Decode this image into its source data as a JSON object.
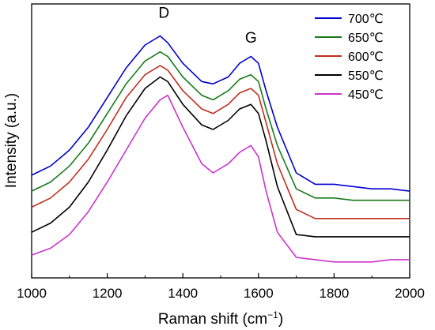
{
  "chart_data": {
    "type": "line",
    "title": "",
    "xlabel": "Raman shift (cm",
    "xlabel_sup": "−1",
    "xlabel_end": ")",
    "ylabel": "Intensity (a.u.)",
    "xlim": [
      1000,
      2000
    ],
    "ylim": [
      0,
      1.2
    ],
    "xticks": [
      1000,
      1200,
      1400,
      1600,
      1800,
      2000
    ],
    "xtick_labels": [
      "1000",
      "1200",
      "1400",
      "1600",
      "1800",
      "2000"
    ],
    "y_tick_labels_shown": false,
    "grid": false,
    "legend_position": "top-right",
    "annotations": [
      {
        "text": "D",
        "x": 1350,
        "y": 1.14
      },
      {
        "text": "G",
        "x": 1580,
        "y": 1.03
      }
    ],
    "x": [
      1000,
      1050,
      1100,
      1150,
      1200,
      1250,
      1300,
      1340,
      1360,
      1400,
      1450,
      1480,
      1520,
      1550,
      1580,
      1600,
      1620,
      1650,
      1700,
      1750,
      1800,
      1850,
      1900,
      1950,
      2000
    ],
    "series": [
      {
        "name": "700℃",
        "color": "#0000cc",
        "values": [
          0.45,
          0.49,
          0.56,
          0.66,
          0.79,
          0.92,
          1.02,
          1.06,
          1.03,
          0.94,
          0.86,
          0.85,
          0.88,
          0.94,
          0.97,
          0.94,
          0.82,
          0.66,
          0.46,
          0.41,
          0.41,
          0.4,
          0.39,
          0.39,
          0.38
        ]
      },
      {
        "name": "650℃",
        "color": "#1a7a1a",
        "values": [
          0.38,
          0.42,
          0.49,
          0.59,
          0.72,
          0.85,
          0.95,
          0.99,
          0.97,
          0.88,
          0.8,
          0.78,
          0.82,
          0.87,
          0.89,
          0.86,
          0.74,
          0.58,
          0.39,
          0.35,
          0.35,
          0.34,
          0.34,
          0.34,
          0.34
        ]
      },
      {
        "name": "600℃",
        "color": "#c0301e",
        "values": [
          0.31,
          0.35,
          0.42,
          0.52,
          0.65,
          0.79,
          0.89,
          0.93,
          0.91,
          0.82,
          0.74,
          0.72,
          0.76,
          0.81,
          0.83,
          0.8,
          0.68,
          0.5,
          0.3,
          0.26,
          0.26,
          0.26,
          0.26,
          0.26,
          0.26
        ]
      },
      {
        "name": "550℃",
        "color": "#000000",
        "values": [
          0.2,
          0.24,
          0.31,
          0.42,
          0.56,
          0.71,
          0.83,
          0.88,
          0.86,
          0.76,
          0.67,
          0.65,
          0.69,
          0.74,
          0.76,
          0.72,
          0.6,
          0.4,
          0.19,
          0.18,
          0.18,
          0.18,
          0.18,
          0.18,
          0.18
        ]
      },
      {
        "name": "450℃",
        "color": "#cc33cc",
        "values": [
          0.1,
          0.13,
          0.19,
          0.29,
          0.42,
          0.56,
          0.7,
          0.78,
          0.8,
          0.66,
          0.5,
          0.46,
          0.5,
          0.55,
          0.58,
          0.53,
          0.38,
          0.2,
          0.09,
          0.08,
          0.07,
          0.07,
          0.07,
          0.08,
          0.08
        ]
      }
    ]
  }
}
